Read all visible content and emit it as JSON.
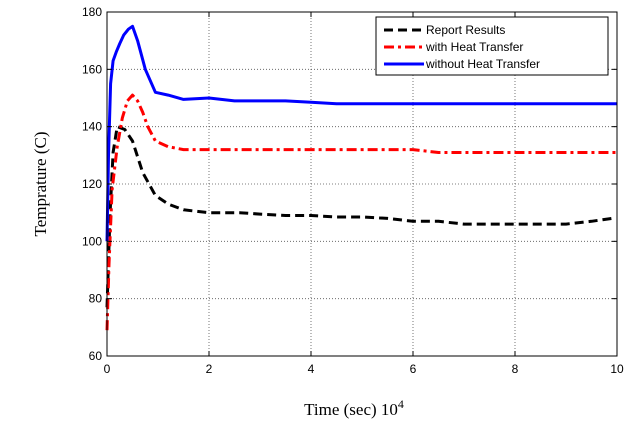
{
  "chart_data": {
    "type": "line",
    "xlabel": "Time (sec)",
    "xlabel_exponent": "4",
    "xlabel_base": "10",
    "ylabel": "Temprature (C)",
    "xlim": [
      0,
      10
    ],
    "ylim": [
      60,
      180
    ],
    "x_ticks": [
      "0",
      "2",
      "4",
      "6",
      "8",
      "10"
    ],
    "y_ticks": [
      "60",
      "80",
      "100",
      "120",
      "140",
      "160",
      "180"
    ],
    "grid": true,
    "legend_position": "top-right",
    "series": [
      {
        "name": "Report Results",
        "color": "#000000",
        "style": "dashed",
        "x": [
          0.0,
          0.06,
          0.12,
          0.2,
          0.35,
          0.5,
          0.7,
          0.95,
          1.2,
          1.5,
          2.0,
          2.6,
          3.0,
          3.5,
          4.0,
          4.5,
          5.0,
          5.5,
          6.0,
          6.5,
          7.0,
          7.5,
          8.0,
          8.5,
          9.0,
          9.5,
          9.9
        ],
        "values": [
          77,
          110,
          131,
          140,
          139,
          135,
          124,
          116,
          113,
          111,
          110,
          110,
          109.5,
          109,
          109,
          108.5,
          108.5,
          108,
          107,
          107,
          106,
          106,
          106,
          106,
          106,
          107,
          108
        ]
      },
      {
        "name": "with Heat Transfer",
        "color": "#ff0000",
        "style": "dashdot",
        "x": [
          0.0,
          0.04,
          0.1,
          0.2,
          0.3,
          0.4,
          0.5,
          0.6,
          0.7,
          0.8,
          0.95,
          1.2,
          1.5,
          2.0,
          2.5,
          3.0,
          3.5,
          4.0,
          4.5,
          5.0,
          5.5,
          6.0,
          6.5,
          7.0,
          7.5,
          8.0,
          8.5,
          9.0,
          9.5,
          10.0
        ],
        "values": [
          69,
          92,
          118,
          133,
          143,
          149,
          151,
          149,
          145,
          140,
          135,
          133,
          132,
          132,
          132,
          132,
          132,
          132,
          132,
          132,
          132,
          132,
          131,
          131,
          131,
          131,
          131,
          131,
          131,
          131
        ]
      },
      {
        "name": "without Heat Transfer",
        "color": "#0000ff",
        "style": "solid",
        "x": [
          0.0,
          0.03,
          0.07,
          0.12,
          0.18,
          0.25,
          0.33,
          0.42,
          0.5,
          0.6,
          0.75,
          0.95,
          1.2,
          1.5,
          2.0,
          2.5,
          3.0,
          3.5,
          4.0,
          4.5,
          5.0,
          5.5,
          6.0,
          6.5,
          7.0,
          7.5,
          8.0,
          8.5,
          9.0,
          9.5,
          10.0
        ],
        "values": [
          100,
          130,
          155,
          163,
          166,
          169,
          172,
          174,
          175,
          170,
          160,
          152,
          151,
          149.5,
          150,
          149,
          149,
          149,
          148.5,
          148,
          148,
          148,
          148,
          148,
          148,
          148,
          148,
          148,
          148,
          148,
          148
        ]
      }
    ]
  }
}
